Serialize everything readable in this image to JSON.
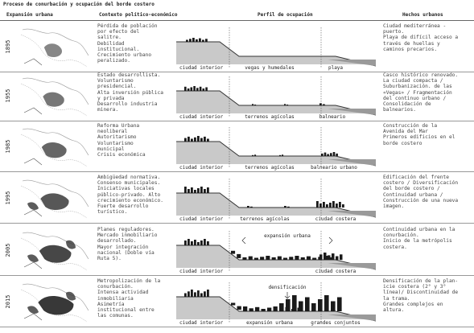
{
  "title": "Proceso de conurbación y ocupación del borde costero",
  "headers": {
    "expansion": "Expansión urbana",
    "contexto": "Contexto político-económico",
    "perfil": "Perfil de ocupación",
    "hechos": "Hechos urbanos"
  },
  "rows": [
    {
      "year": "1895",
      "context": "Pérdida de población\npor efecto del\nsalitre.\nDebilidad\ninstitucional.\nCrecimiento urbano\nperalizado.",
      "profile_labels": [
        "ciudad interior",
        "vegas y humedales",
        "playa"
      ],
      "annotation": "",
      "facts": "Ciudad mediterránea -\npuerto.\nPlaya de difícil acceso a\ntravés de huellas y\ncaminos precarios."
    },
    {
      "year": "1955",
      "context": "Estado desarrollista.\nVoluntarismo\npresidencial.\nAlta inversión pública\ny privada\nDesarrollo industria\nminera.",
      "profile_labels": [
        "ciudad interior",
        "terrenos agícolas",
        "balneario"
      ],
      "annotation": "",
      "facts": "Casco histórico renovado.\nLa ciudad compacta /\nSuburbanización. de las\n«Vegas» / Fragmentación\ndel continuo urbano /\nConsolidación de\nbalnearios."
    },
    {
      "year": "1985",
      "context": "Reforma Urbana\nneoliberal\nAutoritarismo\nVoluntarismo\nmunicipal\nCrisis económica",
      "profile_labels": [
        "ciudad interior",
        "terrenos agícolas",
        "balneario urbano"
      ],
      "annotation": "",
      "facts": "Construcción de la\nAvenida del Mar\nPrimeros edificios en el\nborde costero"
    },
    {
      "year": "1995",
      "context": "Ambigüedad normativa.\nConsenso municipales.\nIniciativas locales\npúblico-privado. Alto\ncrecimiento económico.\nFuerte desarrollo\nturístico.",
      "profile_labels": [
        "ciudad interior",
        "terrenos agícolas",
        "ciudad costera"
      ],
      "annotation": "",
      "facts": "Edificación del frente\ncostero / Diversificación\ndel borde costero /\nContinuidad urbana /\nConstrucción de una nueva\nimagen."
    },
    {
      "year": "2005",
      "context": "Planes reguladores.\nMercado inmobiliario\ndesarrollado.\nMayor integración\nnacional (Doble vía\nRuta 5).",
      "profile_labels": [
        "ciudad interior",
        "ciudad costera"
      ],
      "annotation": "expansión urbana",
      "facts": "Continuidad urbana en la\nconurbación.\nInicio de la metrópolis\ncostera."
    },
    {
      "year": "2015",
      "context": "Metropolización de la\nconurbación.\nIntensa actividad\ninmobiliaria\nAsimetría\ninstitucional entre\nlas comunas.",
      "profile_labels": [
        "ciudad interior",
        "expansión urbana",
        "grandes conjuntos"
      ],
      "annotation": "densificación",
      "facts": "Densificación de la plan-\nicie costera (2° y 3°\nlínea)/ Discontinuidad de\nla trama.\nGrandes complejos en\naltura."
    }
  ]
}
